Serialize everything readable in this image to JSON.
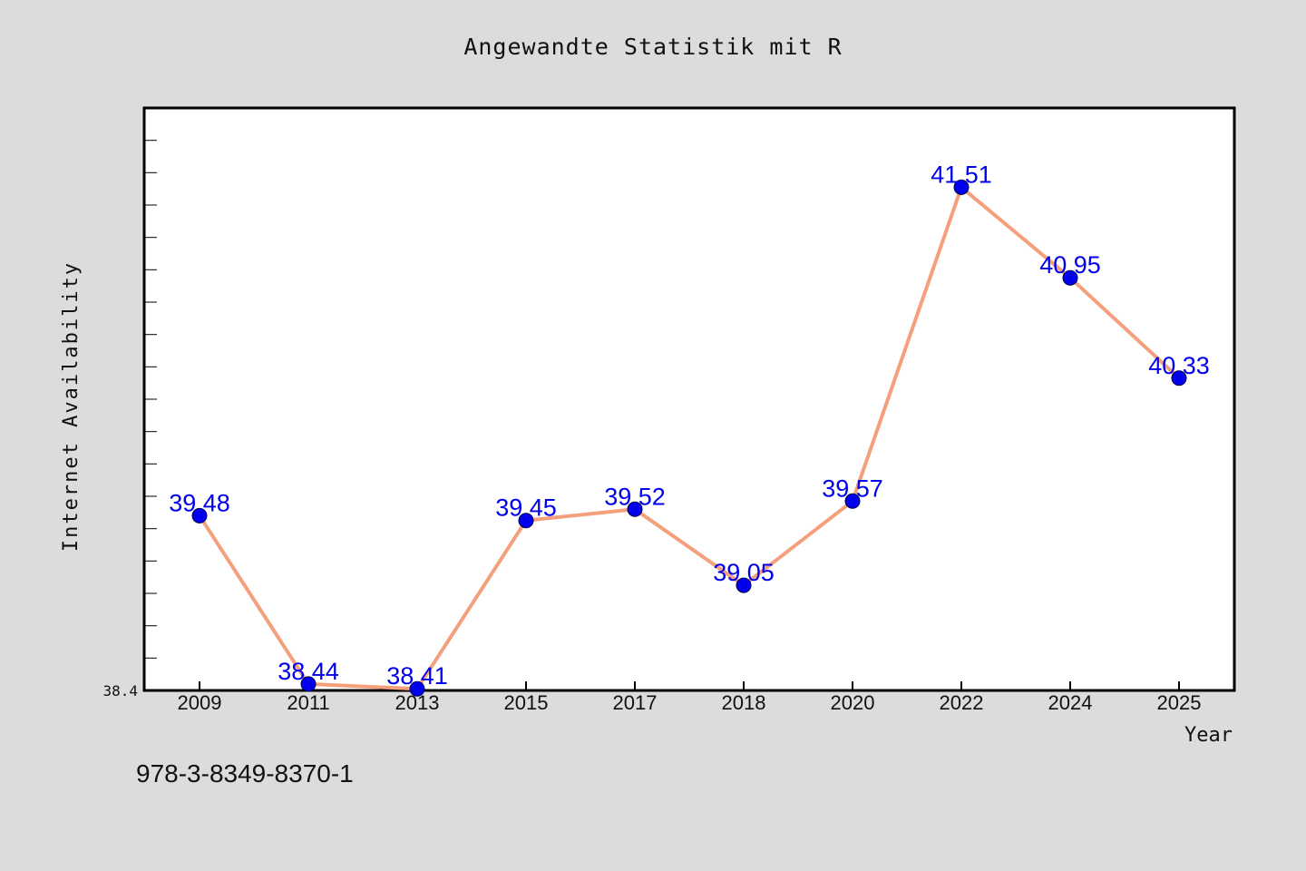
{
  "chart_data": {
    "type": "line",
    "title": "Angewandte Statistik mit R",
    "xlabel": "Year",
    "ylabel": "Internet Availability",
    "categories": [
      "2009",
      "2011",
      "2013",
      "2015",
      "2017",
      "2018",
      "2020",
      "2022",
      "2024",
      "2025"
    ],
    "series": [
      {
        "values": [
          39.48,
          38.44,
          38.41,
          39.45,
          39.52,
          39.05,
          39.57,
          41.51,
          40.95,
          40.33
        ],
        "labels": [
          "39.48",
          "38.44",
          "38.41",
          "39.45",
          "39.52",
          "39.05",
          "39.57",
          "41.51",
          "40.95",
          "40.33"
        ]
      }
    ],
    "ylim": [
      38.4,
      42.0
    ],
    "y_tick_label": "38.4",
    "grid": false,
    "legend": "none",
    "footer_text": "978-3-8349-8370-1",
    "colors": {
      "background": "#dcdcdc",
      "plot_background": "#ffffff",
      "line": "#f4a07c",
      "marker": "#0000ee",
      "data_label": "#0000ee",
      "text": "#111111"
    }
  }
}
